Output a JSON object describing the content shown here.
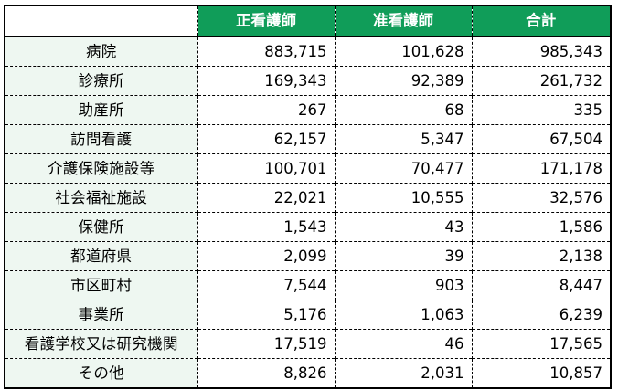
{
  "table": {
    "corner": "",
    "headers": [
      "正看護師",
      "准看護師",
      "合計"
    ],
    "rows": [
      {
        "label": "病院",
        "values": [
          "883,715",
          "101,628",
          "985,343"
        ]
      },
      {
        "label": "診療所",
        "values": [
          "169,343",
          "92,389",
          "261,732"
        ]
      },
      {
        "label": "助産所",
        "values": [
          "267",
          "68",
          "335"
        ]
      },
      {
        "label": "訪問看護",
        "values": [
          "62,157",
          "5,347",
          "67,504"
        ]
      },
      {
        "label": "介護保険施設等",
        "values": [
          "100,701",
          "70,477",
          "171,178"
        ]
      },
      {
        "label": "社会福祉施設",
        "values": [
          "22,021",
          "10,555",
          "32,576"
        ]
      },
      {
        "label": "保健所",
        "values": [
          "1,543",
          "43",
          "1,586"
        ]
      },
      {
        "label": "都道府県",
        "values": [
          "2,099",
          "39",
          "2,138"
        ]
      },
      {
        "label": "市区町村",
        "values": [
          "7,544",
          "903",
          "8,447"
        ]
      },
      {
        "label": "事業所",
        "values": [
          "5,176",
          "1,063",
          "6,239"
        ]
      },
      {
        "label": "看護学校又は研究機関",
        "values": [
          "17,519",
          "46",
          "17,565"
        ]
      },
      {
        "label": "その他",
        "values": [
          "8,826",
          "2,031",
          "10,857"
        ]
      }
    ]
  },
  "colors": {
    "header_background": "#109d59",
    "header_text": "#ffffff",
    "category_background": "#eef7f1",
    "border": "#000000"
  }
}
